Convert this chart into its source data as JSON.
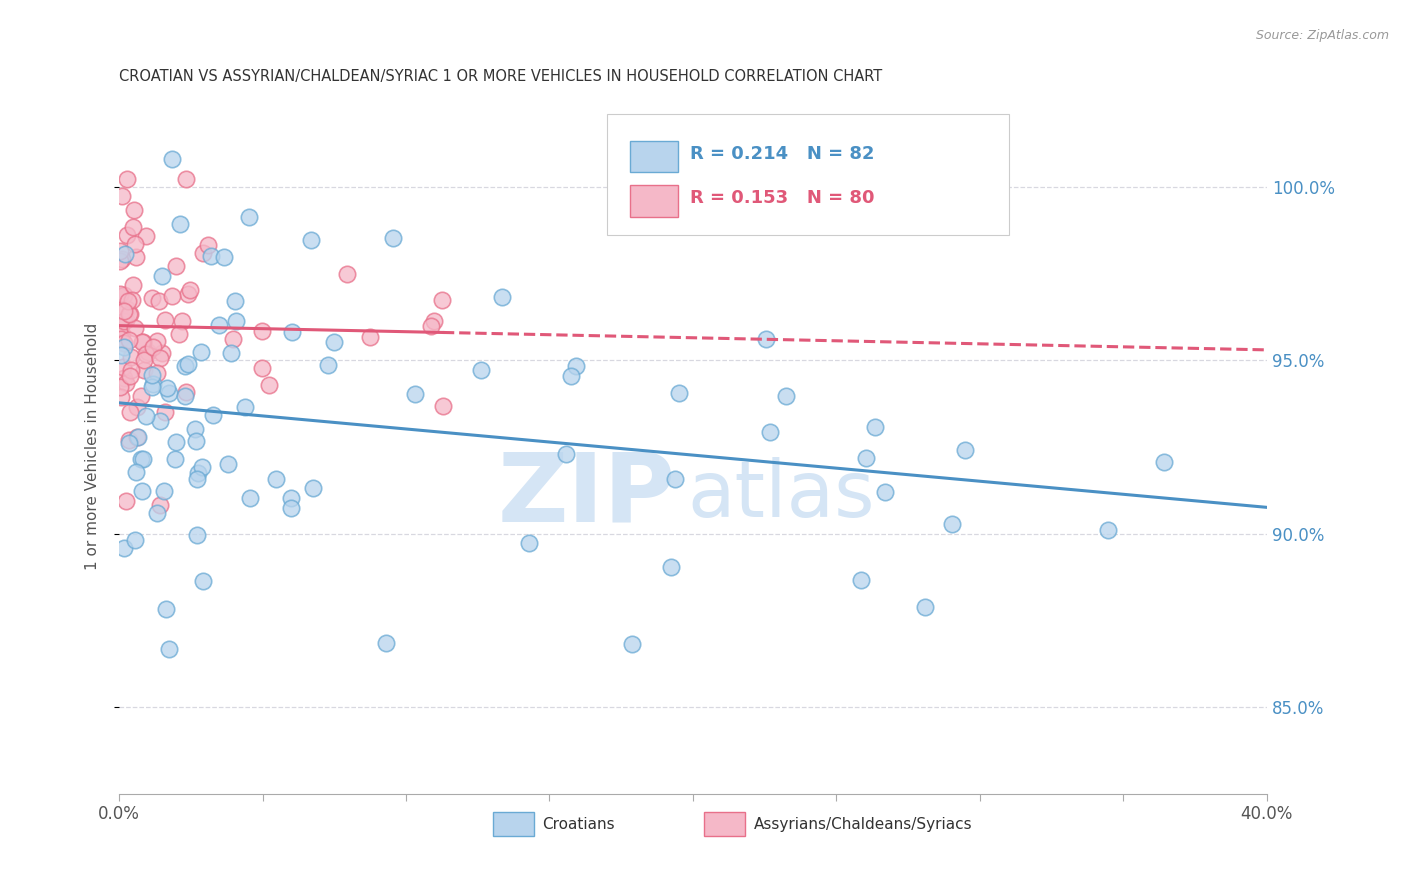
{
  "title": "CROATIAN VS ASSYRIAN/CHALDEAN/SYRIAC 1 OR MORE VEHICLES IN HOUSEHOLD CORRELATION CHART",
  "source": "Source: ZipAtlas.com",
  "ylabel": "1 or more Vehicles in Household",
  "legend_label_croatian": "Croatians",
  "legend_label_assyrian": "Assyrians/Chaldeans/Syriacs",
  "R_croatian": 0.214,
  "N_croatian": 82,
  "R_assyrian": 0.153,
  "N_assyrian": 80,
  "xmin": 0.0,
  "xmax": 40.0,
  "ymin": 82.5,
  "ymax": 102.5,
  "yticks": [
    85.0,
    90.0,
    95.0,
    100.0
  ],
  "color_croatian_fill": "#b8d4ed",
  "color_croatian_edge": "#6aaad4",
  "color_assyrian_fill": "#f5b8c8",
  "color_assyrian_edge": "#e8708a",
  "color_line_croatian": "#4a90c4",
  "color_line_assyrian": "#e05878",
  "color_grid": "#d8d8e0",
  "watermark_text": "ZIP",
  "watermark_text2": "atlas",
  "watermark_color": "#d5e5f5",
  "background_color": "#ffffff",
  "title_color": "#333333",
  "source_color": "#999999",
  "ytick_color": "#4a90c4",
  "xtick_color": "#555555"
}
